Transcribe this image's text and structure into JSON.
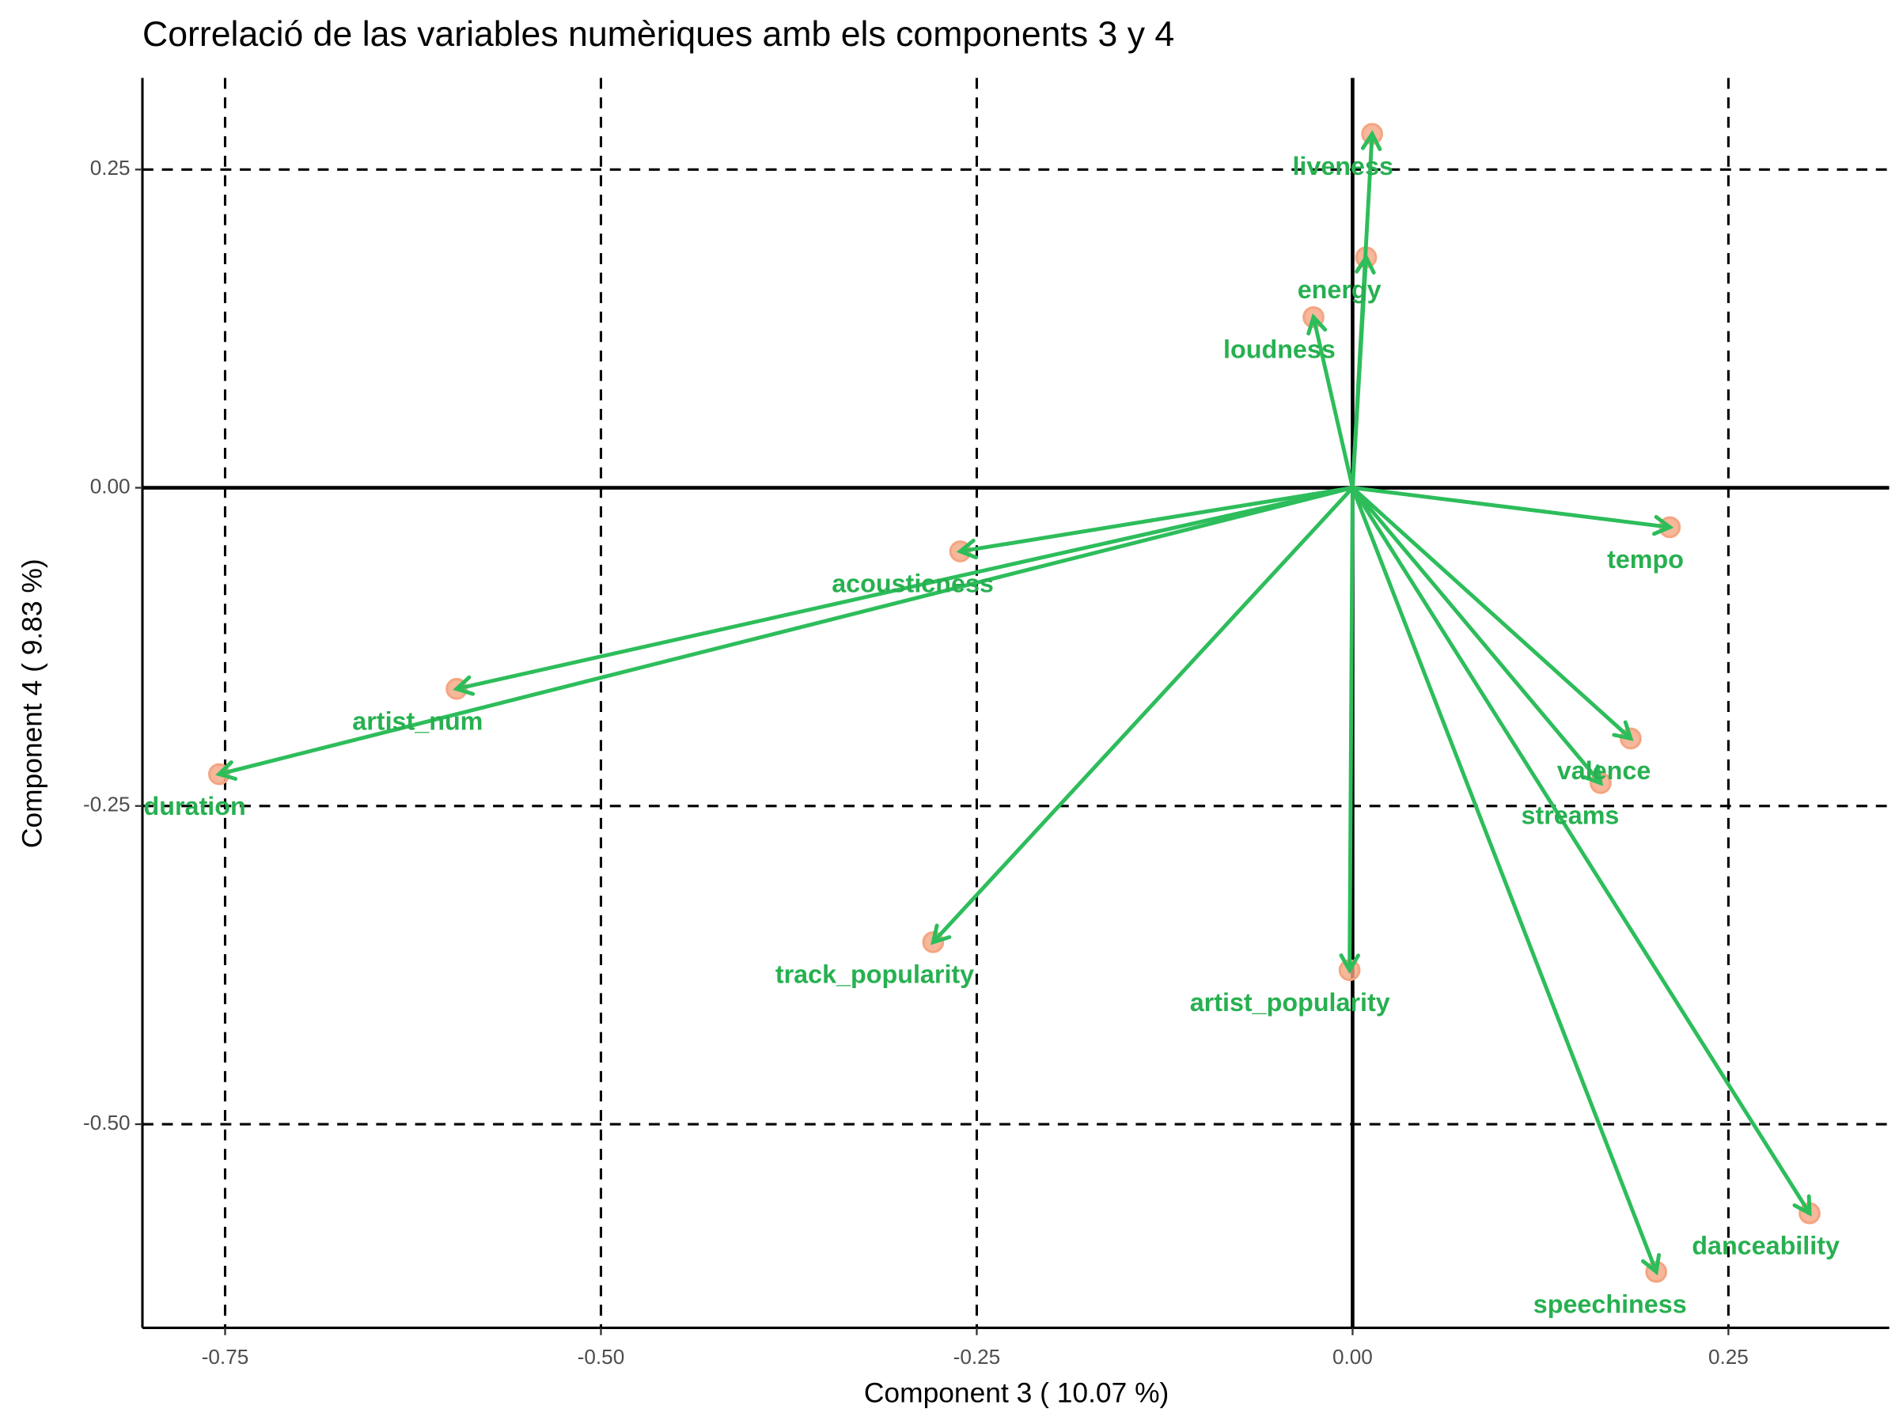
{
  "chart_data": {
    "type": "scatter",
    "title": "Correlació de las variables numèriques amb els components 3 y 4",
    "xlabel": "Component 3 ( 10.07 %)",
    "ylabel": "Component 4 ( 9.83 %)",
    "labels": [
      "liveness",
      "energy",
      "loudness",
      "tempo",
      "acousticness",
      "artist_num",
      "duration",
      "valence",
      "streams",
      "track_popularity",
      "artist_popularity",
      "danceability",
      "speechiness"
    ],
    "x": [
      0.013,
      0.009,
      -0.026,
      0.211,
      -0.261,
      -0.596,
      -0.754,
      0.185,
      0.165,
      -0.279,
      -0.002,
      0.304,
      0.202
    ],
    "values": [
      0.278,
      0.181,
      0.134,
      -0.031,
      -0.05,
      -0.158,
      -0.225,
      -0.197,
      -0.232,
      -0.357,
      -0.379,
      -0.57,
      -0.616
    ],
    "point_color": "#f4a582",
    "arrow_color": "#2dbd5b",
    "label_color": "#27b050",
    "xlim": [
      -0.805,
      0.357
    ],
    "ylim": [
      -0.66,
      0.322
    ],
    "xticks": [
      {
        "value": -0.75,
        "label": "-0.75"
      },
      {
        "value": -0.5,
        "label": "-0.50"
      },
      {
        "value": -0.25,
        "label": "-0.25"
      },
      {
        "value": 0,
        "label": "0.00"
      },
      {
        "value": 0.25,
        "label": "0.25"
      }
    ],
    "yticks": [
      {
        "value": 0.25,
        "label": "0.25"
      },
      {
        "value": 0,
        "label": "0.00"
      },
      {
        "value": -0.25,
        "label": "-0.25"
      },
      {
        "value": -0.5,
        "label": "-0.50"
      }
    ],
    "grid": true,
    "arrows": true
  }
}
